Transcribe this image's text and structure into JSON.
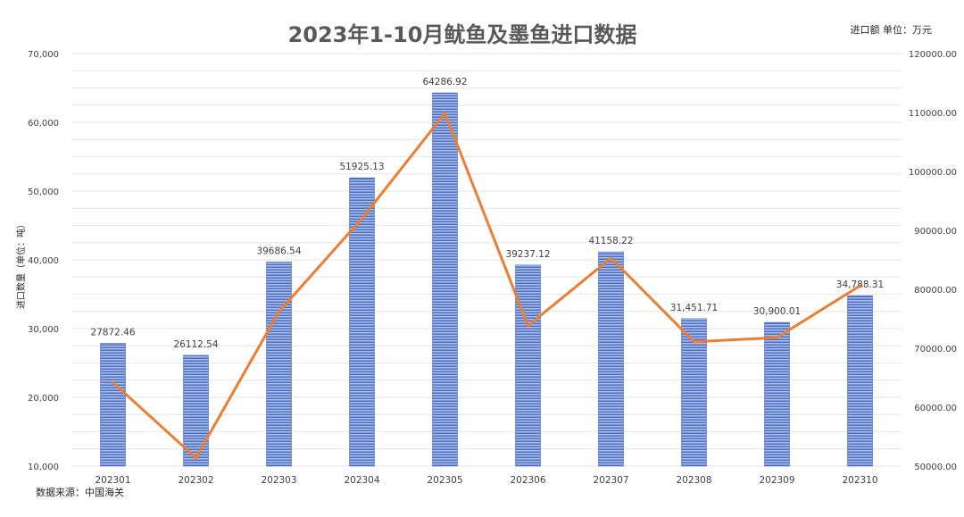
{
  "title": "2023年1-10月鱿鱼及墨鱼进口数据",
  "unit_right": "进口额 单位：万元",
  "source": "数据来源：中国海关",
  "colors": {
    "bar_light": "#aebfea",
    "bar_dark": "#4a6fc4",
    "line": "#ed7d31",
    "grid": "#e6e6e6",
    "axis_text": "#404040"
  },
  "chart_data": {
    "type": "bar",
    "title": "2023年1-10月鱿鱼及墨鱼进口数据",
    "categories": [
      "202301",
      "202302",
      "202303",
      "202304",
      "202305",
      "202306",
      "202307",
      "202308",
      "202309",
      "202310"
    ],
    "series": [
      {
        "name": "",
        "type": "bar",
        "axis": "left",
        "values": [
          27872.46,
          26112.54,
          39686.54,
          51925.13,
          64286.92,
          39237.12,
          41158.22,
          31451.71,
          30900.01,
          34788.31
        ],
        "data_labels": [
          "27872.46",
          "26112.54",
          "39686.54",
          "51925.13",
          "64286.92",
          "39237.12",
          "41158.22",
          "31,451.71",
          "30,900.01",
          "34,788.31"
        ]
      },
      {
        "name": "",
        "type": "line",
        "axis": "right",
        "values": [
          64200,
          51400,
          76200,
          92000,
          109900,
          73800,
          85300,
          71100,
          71800,
          80600
        ]
      }
    ],
    "ylabel": "进口数量（单位：吨）",
    "ylabel_right": "进口额 单位：万元",
    "ylim": [
      10000,
      70000
    ],
    "yticks": [
      10000,
      20000,
      30000,
      40000,
      50000,
      60000,
      70000
    ],
    "ytick_labels": [
      "10,000",
      "20,000",
      "30,000",
      "40,000",
      "50,000",
      "60,000",
      "70,000"
    ],
    "ylim_right": [
      50000,
      120000
    ],
    "yticks_right": [
      50000,
      60000,
      70000,
      80000,
      90000,
      100000,
      110000,
      120000
    ],
    "ytick_labels_right": [
      "50000.00",
      "60000.00",
      "70000.00",
      "80000.00",
      "90000.00",
      "100000.00",
      "110000.00",
      "120000.00"
    ],
    "grid": true,
    "legend": "none"
  }
}
